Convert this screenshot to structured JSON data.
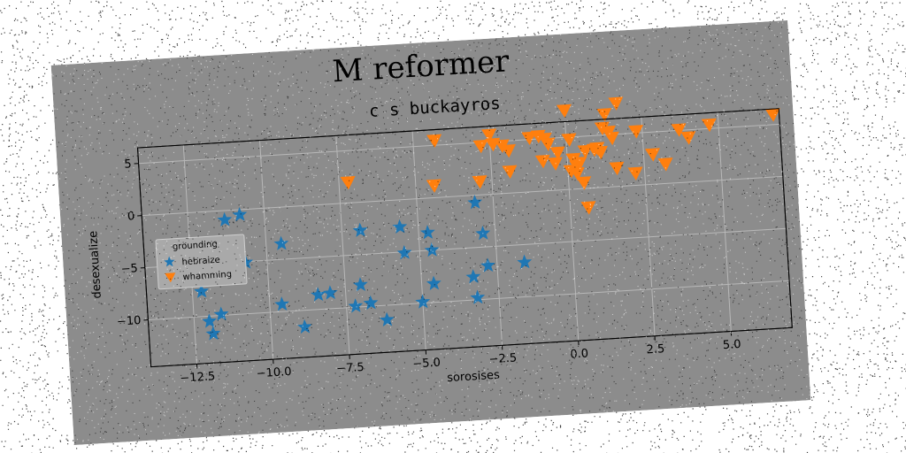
{
  "chart_data": {
    "type": "scatter",
    "title": "M reformer",
    "subtitle": "c s buckayros",
    "xlabel": "sorosises",
    "ylabel": "desexualize",
    "xlim": [
      -14,
      7
    ],
    "ylim": [
      -14.5,
      6.5
    ],
    "xticks": [
      -12.5,
      -10.0,
      -7.5,
      -5.0,
      -2.5,
      0.0,
      2.5,
      5.0
    ],
    "xtick_labels": [
      "−12.5",
      "−10.0",
      "−7.5",
      "−5.0",
      "−2.5",
      "0.0",
      "2.5",
      "5.0"
    ],
    "yticks": [
      5,
      0,
      -5,
      -10
    ],
    "ytick_labels": [
      "5",
      "0",
      "−5",
      "−10"
    ],
    "grid": true,
    "legend": {
      "title": "grounding",
      "placement": "center-left"
    },
    "series": [
      {
        "name": "hebraize",
        "marker": "star",
        "color": "#1f77b4",
        "points": [
          [
            -13.2,
            -4.9
          ],
          [
            -12.9,
            -6.0
          ],
          [
            -12.2,
            -7.6
          ],
          [
            -12.0,
            -10.5
          ],
          [
            -11.9,
            -11.7
          ],
          [
            -11.6,
            -9.9
          ],
          [
            -11.3,
            -0.9
          ],
          [
            -10.8,
            -0.5
          ],
          [
            -10.7,
            -5.1
          ],
          [
            -9.5,
            -3.5
          ],
          [
            -9.6,
            -9.3
          ],
          [
            -8.9,
            -11.6
          ],
          [
            -8.4,
            -8.6
          ],
          [
            -8.0,
            -8.5
          ],
          [
            -7.2,
            -9.9
          ],
          [
            -6.7,
            -9.7
          ],
          [
            -7.0,
            -7.9
          ],
          [
            -6.9,
            -2.7
          ],
          [
            -6.2,
            -11.4
          ],
          [
            -5.6,
            -2.6
          ],
          [
            -5.5,
            -5.1
          ],
          [
            -5.0,
            -9.9
          ],
          [
            -4.7,
            -3.3
          ],
          [
            -4.6,
            -5.0
          ],
          [
            -4.6,
            -8.2
          ],
          [
            -3.3,
            -7.8
          ],
          [
            -3.2,
            -9.8
          ],
          [
            -3.1,
            -0.7
          ],
          [
            -2.9,
            -3.7
          ],
          [
            -2.8,
            -6.8
          ],
          [
            -1.6,
            -6.7
          ]
        ]
      },
      {
        "name": "whamming",
        "marker": "triangle_down",
        "color": "#ff7f0e",
        "points": [
          [
            -7.2,
            2.0
          ],
          [
            -4.3,
            5.5
          ],
          [
            -4.4,
            1.2
          ],
          [
            -2.9,
            1.3
          ],
          [
            -2.8,
            4.7
          ],
          [
            -2.5,
            5.7
          ],
          [
            -2.4,
            4.8
          ],
          [
            -2.1,
            4.6
          ],
          [
            -1.9,
            4.1
          ],
          [
            -1.9,
            2.1
          ],
          [
            -1.2,
            5.2
          ],
          [
            -0.9,
            5.3
          ],
          [
            -0.7,
            5.0
          ],
          [
            -0.6,
            4.5
          ],
          [
            -0.8,
            2.9
          ],
          [
            -0.3,
            3.6
          ],
          [
            -0.4,
            2.6
          ],
          [
            0.0,
            7.6
          ],
          [
            0.1,
            4.8
          ],
          [
            0.1,
            1.8
          ],
          [
            0.2,
            2.9
          ],
          [
            0.3,
            2.2
          ],
          [
            0.3,
            1.5
          ],
          [
            0.5,
            0.6
          ],
          [
            0.6,
            3.6
          ],
          [
            0.6,
            -1.8
          ],
          [
            0.9,
            3.7
          ],
          [
            1.1,
            3.4
          ],
          [
            1.2,
            5.7
          ],
          [
            1.3,
            7.0
          ],
          [
            1.4,
            5.3
          ],
          [
            1.5,
            4.7
          ],
          [
            1.6,
            1.8
          ],
          [
            1.7,
            8.0
          ],
          [
            2.2,
            1.2
          ],
          [
            2.3,
            5.2
          ],
          [
            2.8,
            2.9
          ],
          [
            3.2,
            1.9
          ],
          [
            3.7,
            5.1
          ],
          [
            4.0,
            4.3
          ],
          [
            4.7,
            5.4
          ],
          [
            6.8,
            6.0
          ],
          [
            1.0,
            3.8
          ],
          [
            0.4,
            2.5
          ]
        ]
      }
    ]
  }
}
